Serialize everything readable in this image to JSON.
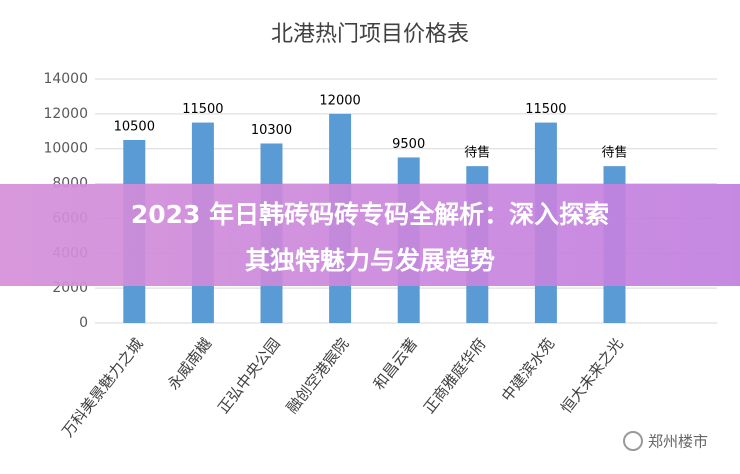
{
  "chart_data": {
    "type": "bar",
    "title": "北港热门项目价格表",
    "categories": [
      "万科美景魅力之城",
      "永威南樾",
      "正弘中央公园",
      "融创空港宸院",
      "和昌云著",
      "正商雅庭华府",
      "中建滨水苑",
      "恒大未来之光"
    ],
    "values": [
      10500,
      11500,
      10300,
      12000,
      9500,
      9000,
      11500,
      9000
    ],
    "value_labels": [
      "10500",
      "11500",
      "10300",
      "12000",
      "9500",
      "待售",
      "11500",
      "待售"
    ],
    "color": "#5b9bd5",
    "ylim": [
      0,
      14000
    ],
    "yticks": [
      0,
      2000,
      4000,
      6000,
      8000,
      10000,
      12000,
      14000
    ],
    "grid": true
  },
  "banner_lines": [
    "2023 年日韩砖码砖专码全解析：深入探索",
    "其独特魅力与发展趋势"
  ],
  "watermark": "郑州楼市"
}
